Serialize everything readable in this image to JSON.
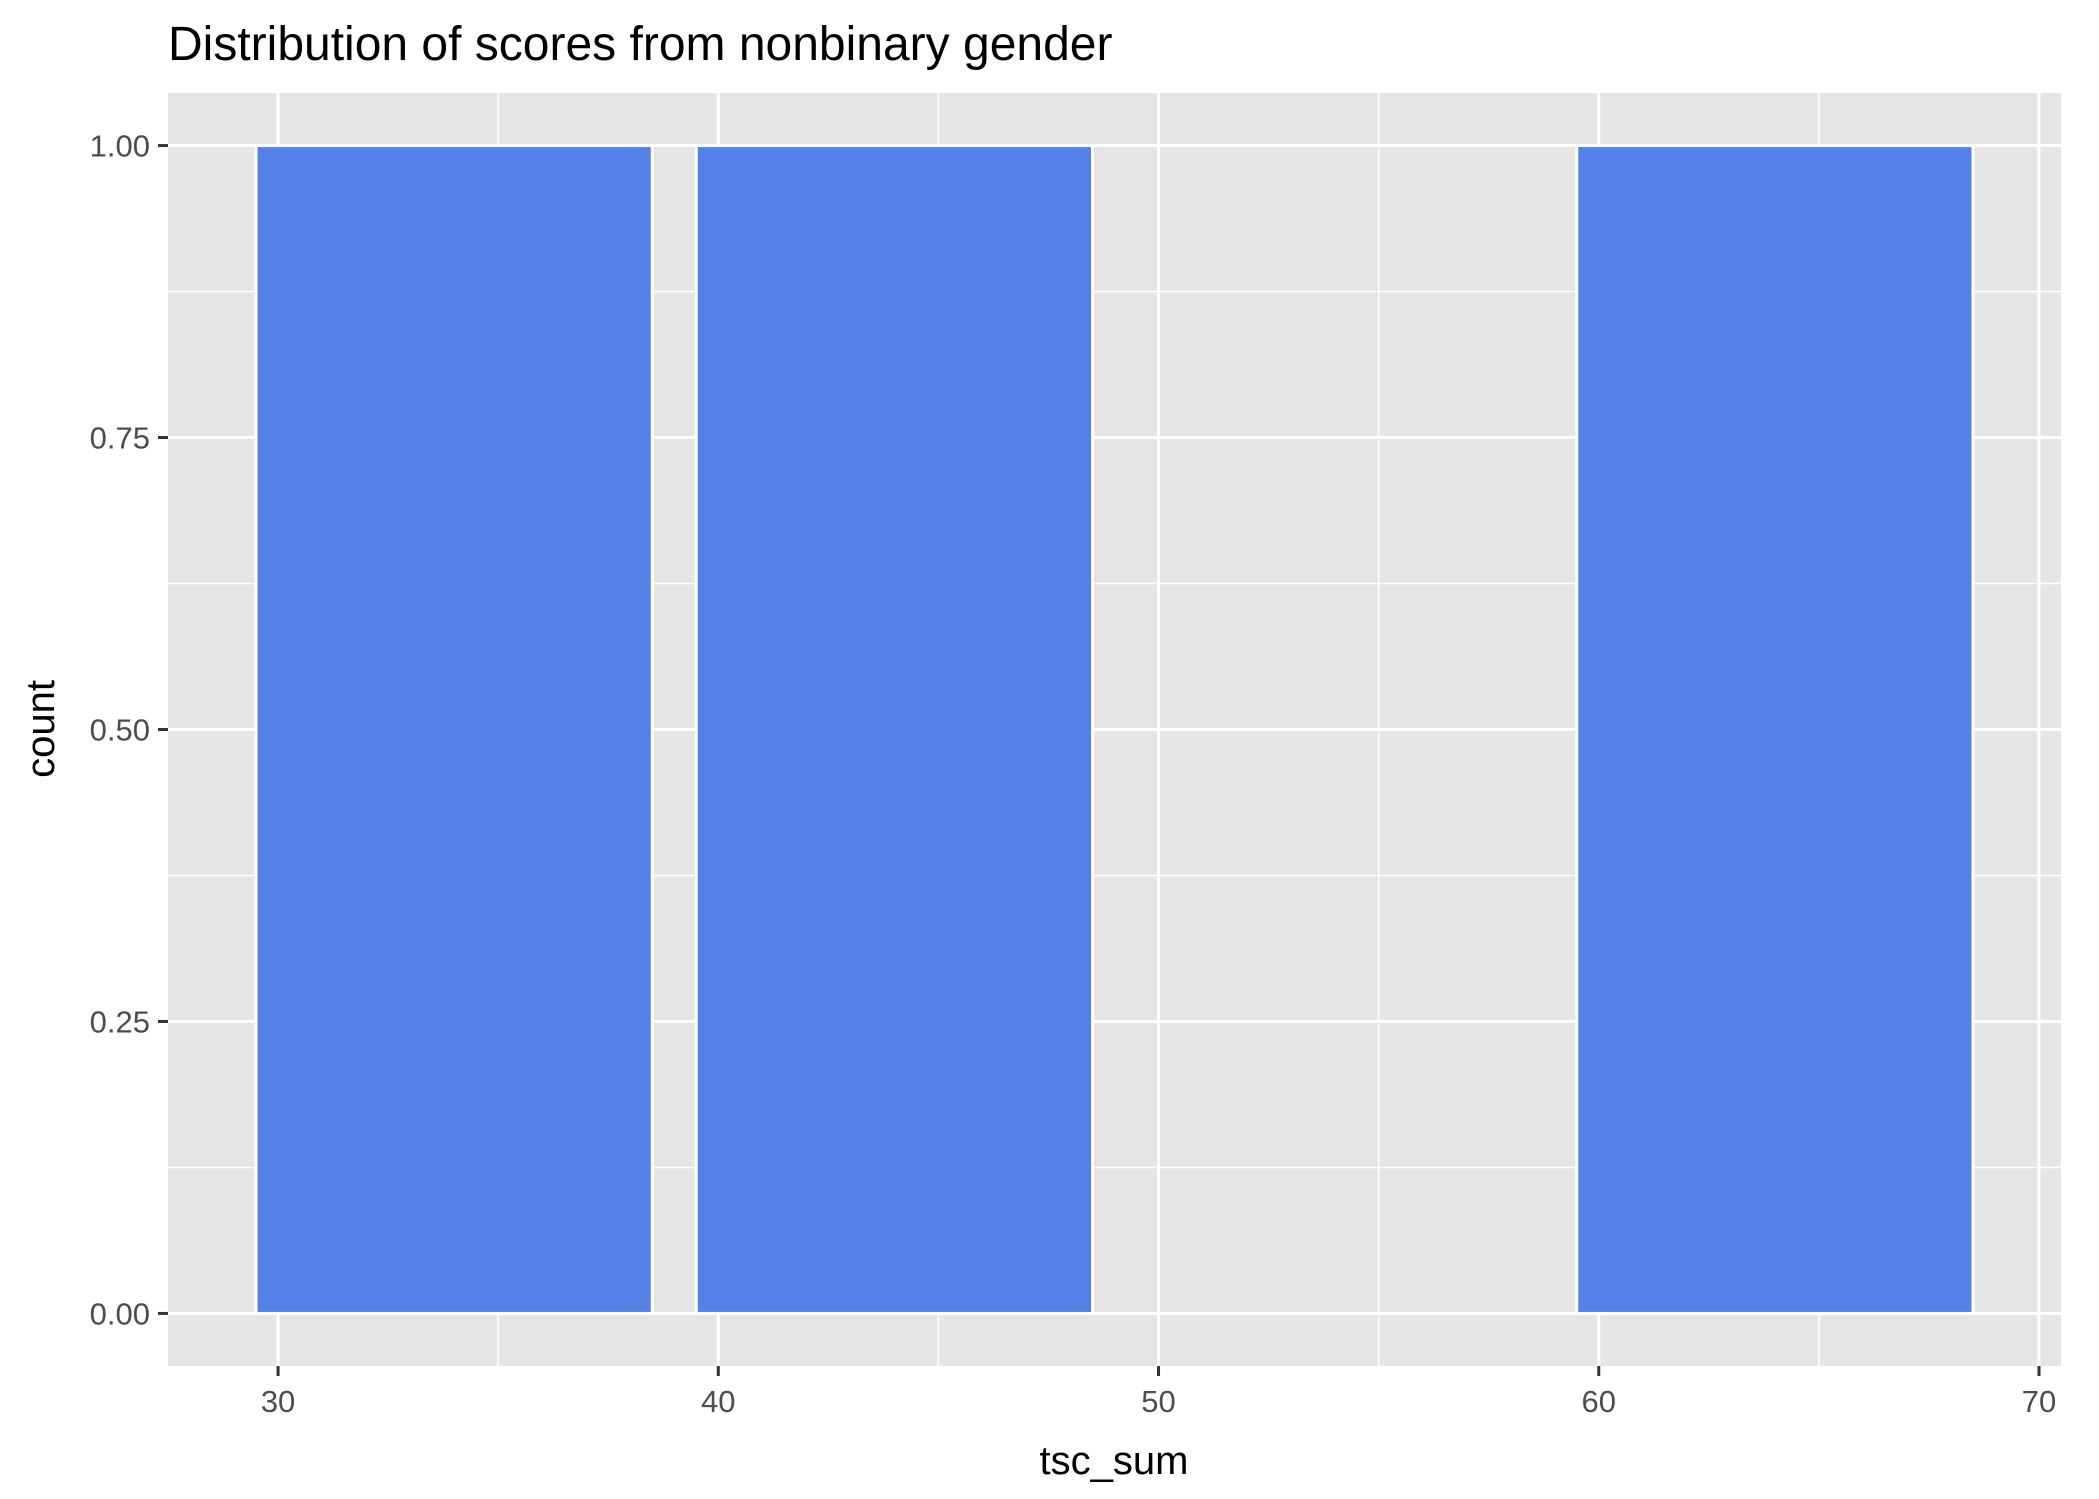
{
  "chart_data": {
    "type": "bar",
    "title": "Distribution of scores from nonbinary gender",
    "xlabel": "tsc_sum",
    "ylabel": "count",
    "xlim": [
      27.5,
      70.5
    ],
    "ylim": [
      -0.045,
      1.045
    ],
    "x_ticks": [
      30,
      40,
      50,
      60,
      70
    ],
    "x_minor_ticks": [
      35,
      45,
      55,
      65
    ],
    "y_ticks": [
      0,
      0.25,
      0.5,
      0.75,
      1
    ],
    "y_tick_labels": [
      "0.00",
      "0.25",
      "0.50",
      "0.75",
      "1.00"
    ],
    "y_minor_ticks": [
      0.125,
      0.375,
      0.625,
      0.875
    ],
    "bins": [
      {
        "start": 29.5,
        "end": 38.5,
        "count": 1
      },
      {
        "start": 39.5,
        "end": 48.5,
        "count": 1
      },
      {
        "start": 59.5,
        "end": 68.5,
        "count": 1
      }
    ],
    "grid": true,
    "colors": {
      "bar_fill": "#5381e8",
      "bar_outline": "#ffffff",
      "panel": "#e5e5e5",
      "grid": "#ffffff"
    }
  }
}
